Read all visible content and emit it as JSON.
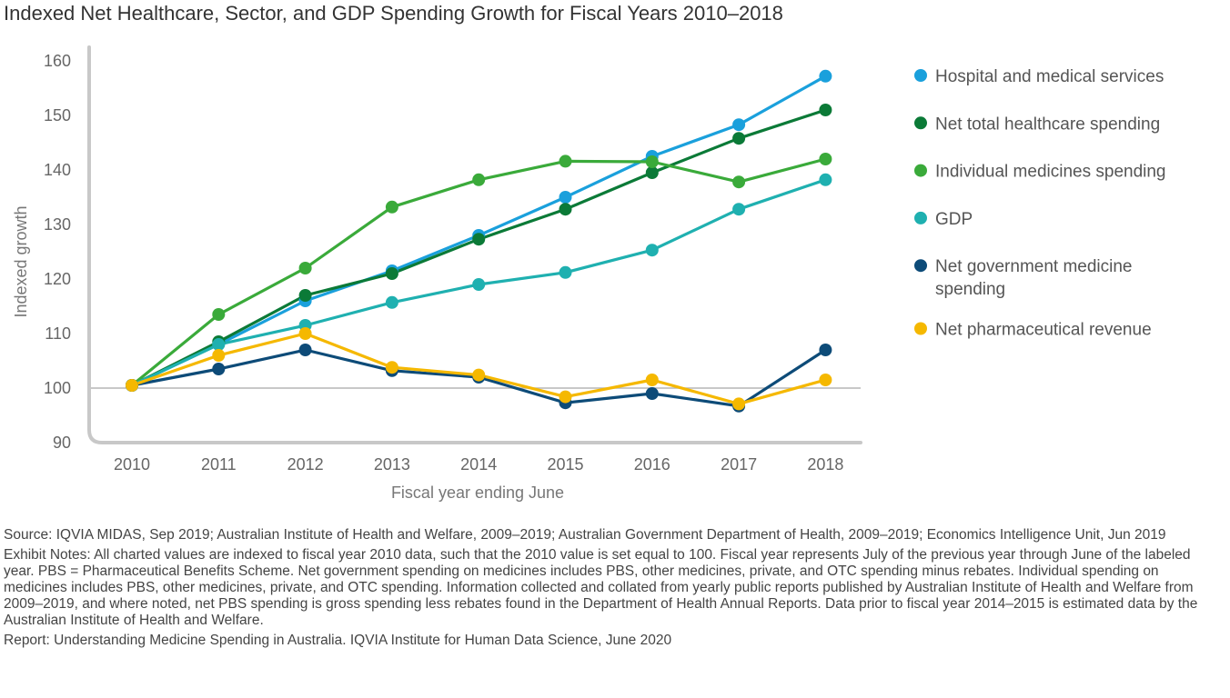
{
  "title": "Indexed Net Healthcare, Sector, and GDP Spending Growth for Fiscal Years 2010–2018",
  "chart_data": {
    "type": "line",
    "title": "Indexed Net Healthcare, Sector, and GDP Spending Growth for Fiscal Years 2010–2018",
    "xlabel": "Fiscal year ending June",
    "ylabel": "Indexed growth",
    "ylim": [
      90,
      160
    ],
    "yticks": [
      90,
      100,
      110,
      120,
      130,
      140,
      150,
      160
    ],
    "reference_line": 100,
    "categories": [
      "2010",
      "2011",
      "2012",
      "2013",
      "2014",
      "2015",
      "2016",
      "2017",
      "2018"
    ],
    "legend_position": "right",
    "series": [
      {
        "name": "Hospital and medical services",
        "color": "#1aa0dc",
        "values": [
          100.5,
          108,
          116,
          121.5,
          128,
          135,
          142.5,
          148.3,
          157.2
        ]
      },
      {
        "name": "Net total healthcare spending",
        "color": "#0b7a37",
        "values": [
          100.5,
          108.5,
          117,
          121,
          127.3,
          132.8,
          139.5,
          145.8,
          151
        ]
      },
      {
        "name": "Individual medicines spending",
        "color": "#3aaa3a",
        "values": [
          100.5,
          113.5,
          122,
          133.2,
          138.2,
          141.6,
          141.5,
          137.8,
          142
        ]
      },
      {
        "name": "GDP",
        "color": "#1fb0b0",
        "values": [
          100.5,
          108,
          111.5,
          115.7,
          119,
          121.2,
          125.3,
          132.8,
          138.2
        ]
      },
      {
        "name": "Net government medicine spending",
        "color": "#0d4b78",
        "values": [
          100.5,
          103.5,
          107,
          103.2,
          102,
          97.3,
          99,
          96.7,
          107
        ]
      },
      {
        "name": "Net pharmaceutical revenue",
        "color": "#f5b800",
        "values": [
          100.5,
          106,
          110,
          103.8,
          102.4,
          98.4,
          101.5,
          97.1,
          101.5
        ]
      }
    ]
  },
  "legend_lines": [
    [
      "Hospital and medical services"
    ],
    [
      "Net total healthcare spending"
    ],
    [
      "Individual medicines spending"
    ],
    [
      "GDP"
    ],
    [
      "Net government medicine",
      "spending"
    ],
    [
      "Net pharmaceutical revenue"
    ]
  ],
  "notes": {
    "source": "Source: IQVIA MIDAS, Sep 2019; Australian Institute of Health and Welfare, 2009–2019; Australian Government Department of Health, 2009–2019; Economics Intelligence Unit, Jun 2019",
    "exhibit": "Exhibit Notes: All charted values are indexed to fiscal year 2010 data, such that the 2010 value is set equal to 100. Fiscal year represents July of the previous year through June of the labeled year. PBS = Pharmaceutical Benefits Scheme. Net government spending on medicines includes PBS, other medicines, private, and OTC spending minus rebates. Individual spending on medicines includes PBS, other medicines, private, and OTC spending. Information collected and collated from yearly public reports published by Australian Institute of Health and Welfare from 2009–2019, and where noted, net PBS spending is gross spending less rebates found in the Department of Health Annual Reports. Data prior to fiscal year 2014–2015 is estimated data by the Australian Institute of Health and Welfare.",
    "report": "Report: Understanding Medicine Spending in Australia. IQVIA Institute for Human Data Science, June 2020"
  }
}
